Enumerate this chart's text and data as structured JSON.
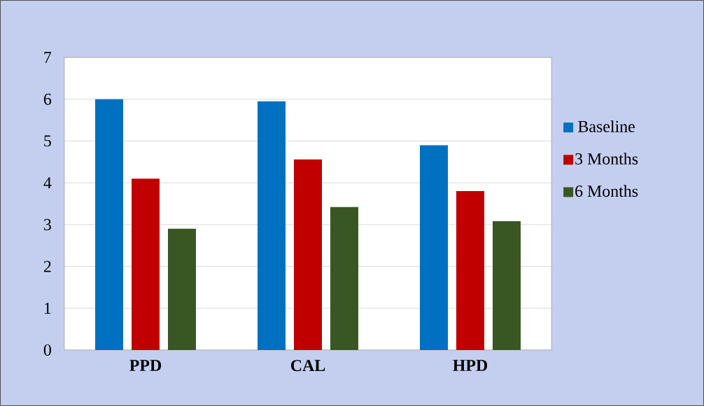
{
  "chart_data": {
    "type": "bar",
    "categories": [
      "PPD",
      "CAL",
      "HPD"
    ],
    "series": [
      {
        "name": "Baseline",
        "color": "#0070c0",
        "values": [
          6.0,
          5.95,
          4.9
        ]
      },
      {
        "name": "3 Months",
        "color": "#c00000",
        "values": [
          4.1,
          4.56,
          3.8
        ]
      },
      {
        "name": "6 Months",
        "color": "#385723",
        "values": [
          2.9,
          3.42,
          3.08
        ]
      }
    ],
    "ylim": [
      0,
      7
    ],
    "yticks": [
      0,
      1,
      2,
      3,
      4,
      5,
      6,
      7
    ],
    "grid": "y",
    "legend": "right"
  }
}
